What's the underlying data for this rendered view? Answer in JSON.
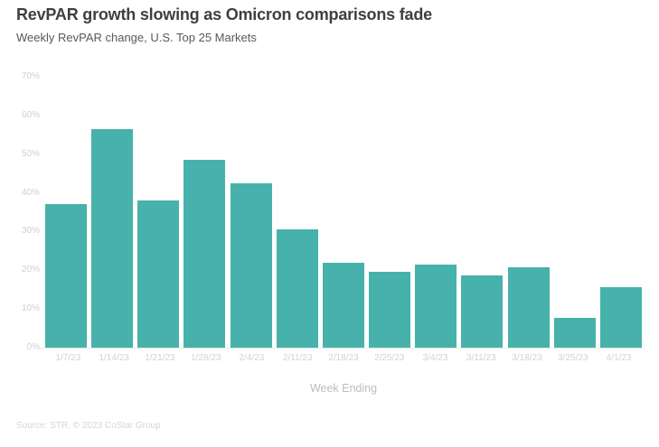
{
  "chart_data": {
    "type": "bar",
    "title": "RevPAR growth slowing as Omicron comparisons fade",
    "subtitle": "Weekly RevPAR change, U.S. Top 25 Markets",
    "xlabel": "Week Ending",
    "ylabel": "",
    "source": "Source: STR, © 2023 CoStar Group",
    "categories": [
      "1/7/23",
      "1/14/23",
      "1/21/23",
      "1/28/23",
      "2/4/23",
      "2/11/23",
      "2/18/23",
      "2/25/23",
      "3/4/23",
      "3/11/23",
      "3/18/23",
      "3/25/23",
      "4/1/23"
    ],
    "values": [
      37,
      56.5,
      38,
      48.5,
      42.5,
      30.5,
      22,
      19.5,
      21.5,
      18.7,
      20.7,
      7.7,
      15.6
    ],
    "yticks": [
      "0%",
      "10%",
      "20%",
      "30%",
      "40%",
      "50%",
      "60%",
      "70%"
    ],
    "ytick_values": [
      0,
      10,
      20,
      30,
      40,
      50,
      60,
      70
    ],
    "ylim": [
      0,
      70
    ],
    "grid": false,
    "legend": "none",
    "bar_color": "#47b2ab"
  }
}
